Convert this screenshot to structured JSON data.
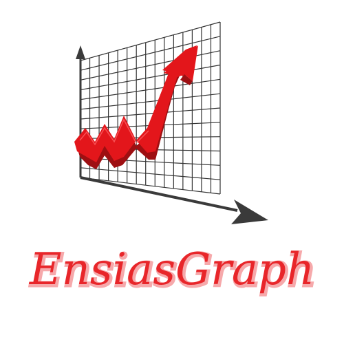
{
  "logo": {
    "wordmark": "EnsiasGraph",
    "colors": {
      "arrow_red": "#e3161b",
      "arrow_dark": "#9e0f12",
      "grid": "#333333",
      "axis": "#3a3a3a",
      "wordmark_red": "#e8262a",
      "wordmark_pink": "#f6a9ab"
    }
  }
}
